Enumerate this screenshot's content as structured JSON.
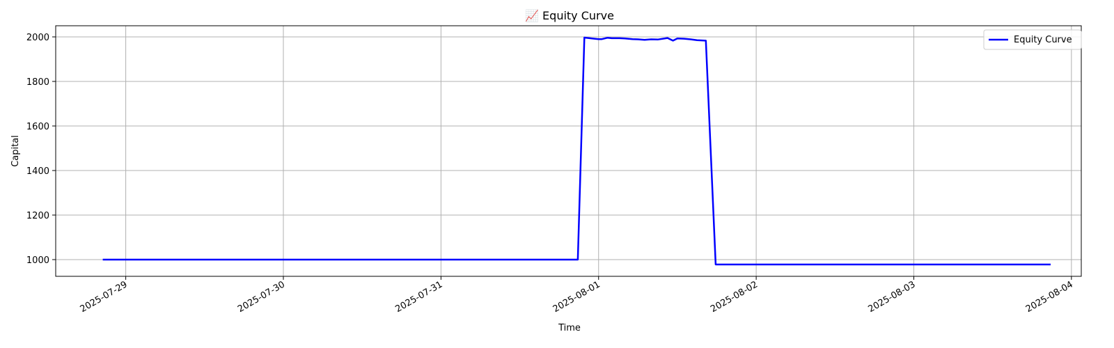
{
  "chart_data": {
    "type": "line",
    "title": "📈 Equity Curve",
    "xlabel": "Time",
    "ylabel": "Capital",
    "ylim": [
      925,
      2050
    ],
    "xlim": [
      "2025-07-28T13:20",
      "2025-08-04T01:30"
    ],
    "grid": true,
    "legend_placement": "top-right",
    "colors": {
      "line": "#0000ff",
      "grid": "#b0b0b0",
      "frame": "#000000"
    },
    "x_ticks": [
      "2025-07-29",
      "2025-07-30",
      "2025-07-31",
      "2025-08-01",
      "2025-08-02",
      "2025-08-03",
      "2025-08-04"
    ],
    "y_ticks": [
      1000,
      1200,
      1400,
      1600,
      1800,
      2000
    ],
    "series": [
      {
        "name": "Equity Curve",
        "x": [
          "2025-07-28T20:30",
          "2025-07-31T20:50",
          "2025-07-31T21:50",
          "2025-07-31T23:00",
          "2025-08-01T00:00",
          "2025-08-01T00:30",
          "2025-08-01T01:20",
          "2025-08-01T02:00",
          "2025-08-01T03:10",
          "2025-08-01T04:00",
          "2025-08-01T05:10",
          "2025-08-01T06:00",
          "2025-08-01T07:00",
          "2025-08-01T08:00",
          "2025-08-01T09:00",
          "2025-08-01T10:30",
          "2025-08-01T11:20",
          "2025-08-01T12:00",
          "2025-08-01T13:00",
          "2025-08-01T14:00",
          "2025-08-01T15:00",
          "2025-08-01T16:20",
          "2025-08-01T17:50",
          "2025-08-01T19:00",
          "2025-08-01T20:00",
          "2025-08-02T08:00",
          "2025-08-03T12:00",
          "2025-08-03T20:50"
        ],
        "y": [
          1000,
          1000,
          1997,
          1993,
          1990,
          1990,
          1996,
          1994,
          1994,
          1993,
          1990,
          1989,
          1987,
          1989,
          1988,
          1995,
          1983,
          1993,
          1992,
          1989,
          1985,
          1983,
          978,
          978,
          978,
          978,
          978,
          978
        ]
      }
    ]
  }
}
